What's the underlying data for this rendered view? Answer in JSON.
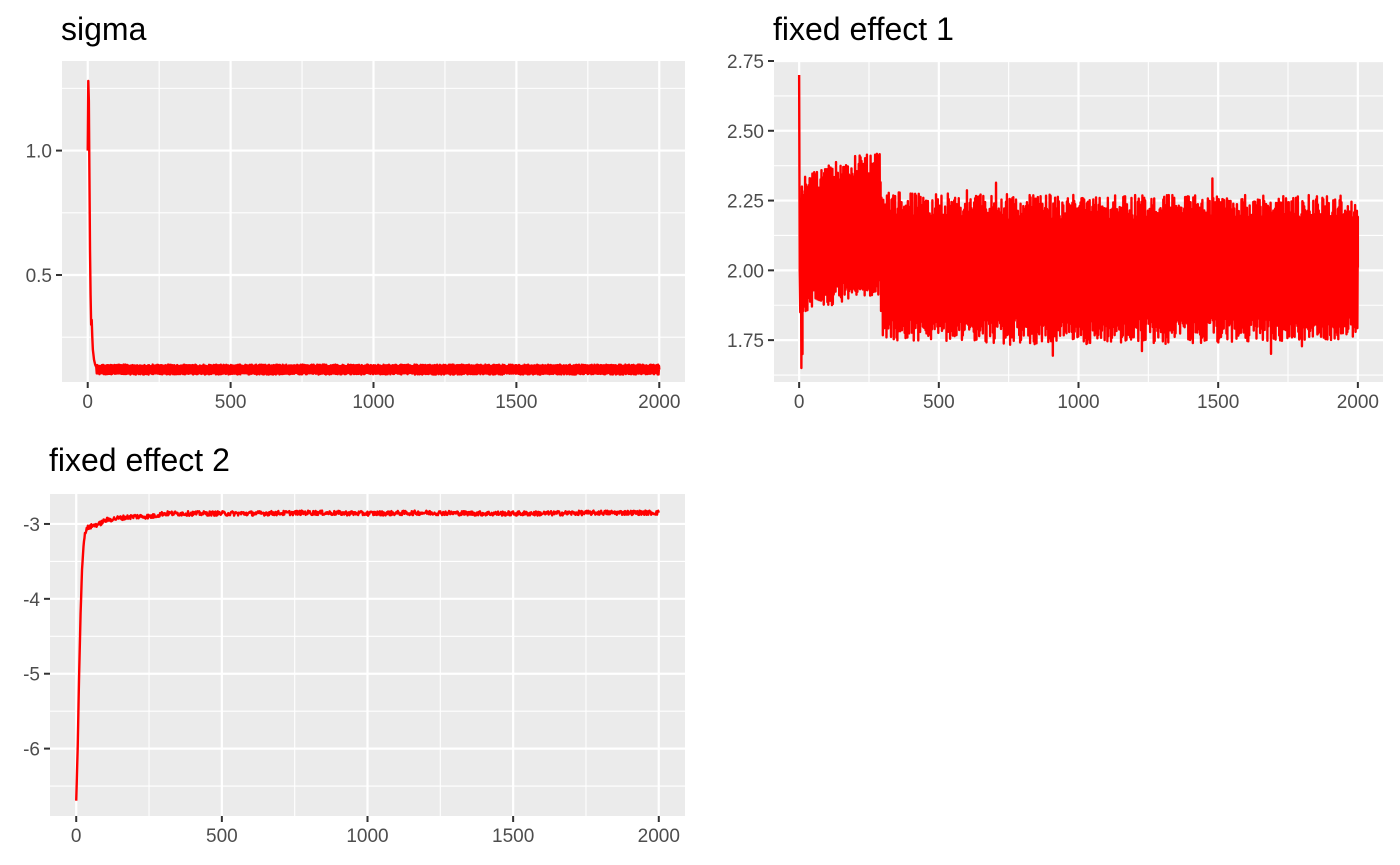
{
  "chart_data": [
    {
      "type": "line",
      "title": "sigma",
      "xlabel": "",
      "ylabel": "",
      "xlim": [
        -90,
        2090
      ],
      "ylim": [
        0.07,
        1.36
      ],
      "x_ticks": [
        0,
        500,
        1000,
        1500,
        2000
      ],
      "x_tick_labels": [
        "0",
        "500",
        "1000",
        "1500",
        "2000"
      ],
      "y_ticks": [
        0.5,
        1.0
      ],
      "y_tick_labels": [
        "0.5",
        "1.0"
      ],
      "y_minor": [
        0.25,
        0.75,
        1.25
      ],
      "grid": true,
      "series": [
        {
          "color": "#ff0000",
          "trace": {
            "points": [
              [
                0,
                1.0
              ],
              [
                2,
                1.28
              ],
              [
                4,
                1.2
              ],
              [
                6,
                0.9
              ],
              [
                8,
                0.6
              ],
              [
                10,
                0.42
              ],
              [
                12,
                0.3
              ],
              [
                14,
                0.32
              ],
              [
                16,
                0.25
              ],
              [
                18,
                0.2
              ],
              [
                20,
                0.18
              ],
              [
                22,
                0.16
              ],
              [
                26,
                0.14
              ],
              [
                30,
                0.13
              ]
            ],
            "band": {
              "from": 30,
              "to": 2000,
              "lower": 0.1,
              "upper": 0.14
            }
          }
        }
      ]
    },
    {
      "type": "line",
      "title": "fixed effect 1",
      "xlabel": "",
      "ylabel": "",
      "xlim": [
        -90,
        2090
      ],
      "ylim": [
        1.6,
        2.75
      ],
      "x_ticks": [
        0,
        500,
        1000,
        1500,
        2000
      ],
      "x_tick_labels": [
        "0",
        "500",
        "1000",
        "1500",
        "2000"
      ],
      "y_ticks": [
        1.75,
        2.0,
        2.25,
        2.5,
        2.75
      ],
      "y_tick_labels": [
        "1.75",
        "2.00",
        "2.25",
        "2.50",
        "2.75"
      ],
      "y_minor": [
        1.625,
        1.875,
        2.125,
        2.375,
        2.625
      ],
      "grid": true,
      "series": [
        {
          "color": "#ff0000",
          "trace": {
            "points": [
              [
                0,
                2.7
              ],
              [
                2,
                2.0
              ],
              [
                4,
                1.85
              ],
              [
                6,
                2.2
              ],
              [
                8,
                1.65
              ],
              [
                10,
                2.3
              ],
              [
                12,
                1.7
              ]
            ],
            "band": {
              "from": 10,
              "to": 2000,
              "lower": [
                [
                  10,
                  1.85
                ],
                [
                  100,
                  1.87
                ],
                [
                  200,
                  1.9
                ],
                [
                  290,
                  1.9
                ],
                [
                  300,
                  1.75
                ],
                [
                  1000,
                  1.73
                ],
                [
                  2000,
                  1.75
                ]
              ],
              "upper": [
                [
                  10,
                  2.33
                ],
                [
                  100,
                  2.38
                ],
                [
                  200,
                  2.41
                ],
                [
                  290,
                  2.42
                ],
                [
                  300,
                  2.28
                ],
                [
                  1000,
                  2.27
                ],
                [
                  2000,
                  2.27
                ]
              ],
              "lower_extreme": 1.68,
              "upper_extreme": 2.36
            }
          }
        }
      ]
    },
    {
      "type": "line",
      "title": "fixed effect 2",
      "xlabel": "",
      "ylabel": "",
      "xlim": [
        -90,
        2090
      ],
      "ylim": [
        -6.9,
        -2.6
      ],
      "x_ticks": [
        0,
        500,
        1000,
        1500,
        2000
      ],
      "x_tick_labels": [
        "0",
        "500",
        "1000",
        "1500",
        "2000"
      ],
      "y_ticks": [
        -6,
        -5,
        -4,
        -3
      ],
      "y_tick_labels": [
        "-6",
        "-5",
        "-4",
        "-3"
      ],
      "y_minor": [
        -6.5,
        -5.5,
        -4.5,
        -3.5
      ],
      "grid": true,
      "series": [
        {
          "color": "#ff0000",
          "trace": {
            "points": [
              [
                0,
                -6.7
              ],
              [
                5,
                -6.0
              ],
              [
                10,
                -5.0
              ],
              [
                15,
                -4.2
              ],
              [
                20,
                -3.6
              ],
              [
                25,
                -3.3
              ],
              [
                30,
                -3.12
              ],
              [
                40,
                -3.05
              ],
              [
                60,
                -3.02
              ],
              [
                80,
                -3.0
              ],
              [
                100,
                -2.95
              ],
              [
                150,
                -2.92
              ],
              [
                200,
                -2.9
              ],
              [
                260,
                -2.9
              ],
              [
                300,
                -2.86
              ],
              [
                400,
                -2.86
              ],
              [
                600,
                -2.86
              ],
              [
                800,
                -2.85
              ],
              [
                1000,
                -2.86
              ],
              [
                1200,
                -2.85
              ],
              [
                1400,
                -2.86
              ],
              [
                1600,
                -2.86
              ],
              [
                1800,
                -2.85
              ],
              [
                2000,
                -2.85
              ]
            ],
            "noise": 0.03
          }
        }
      ]
    }
  ]
}
